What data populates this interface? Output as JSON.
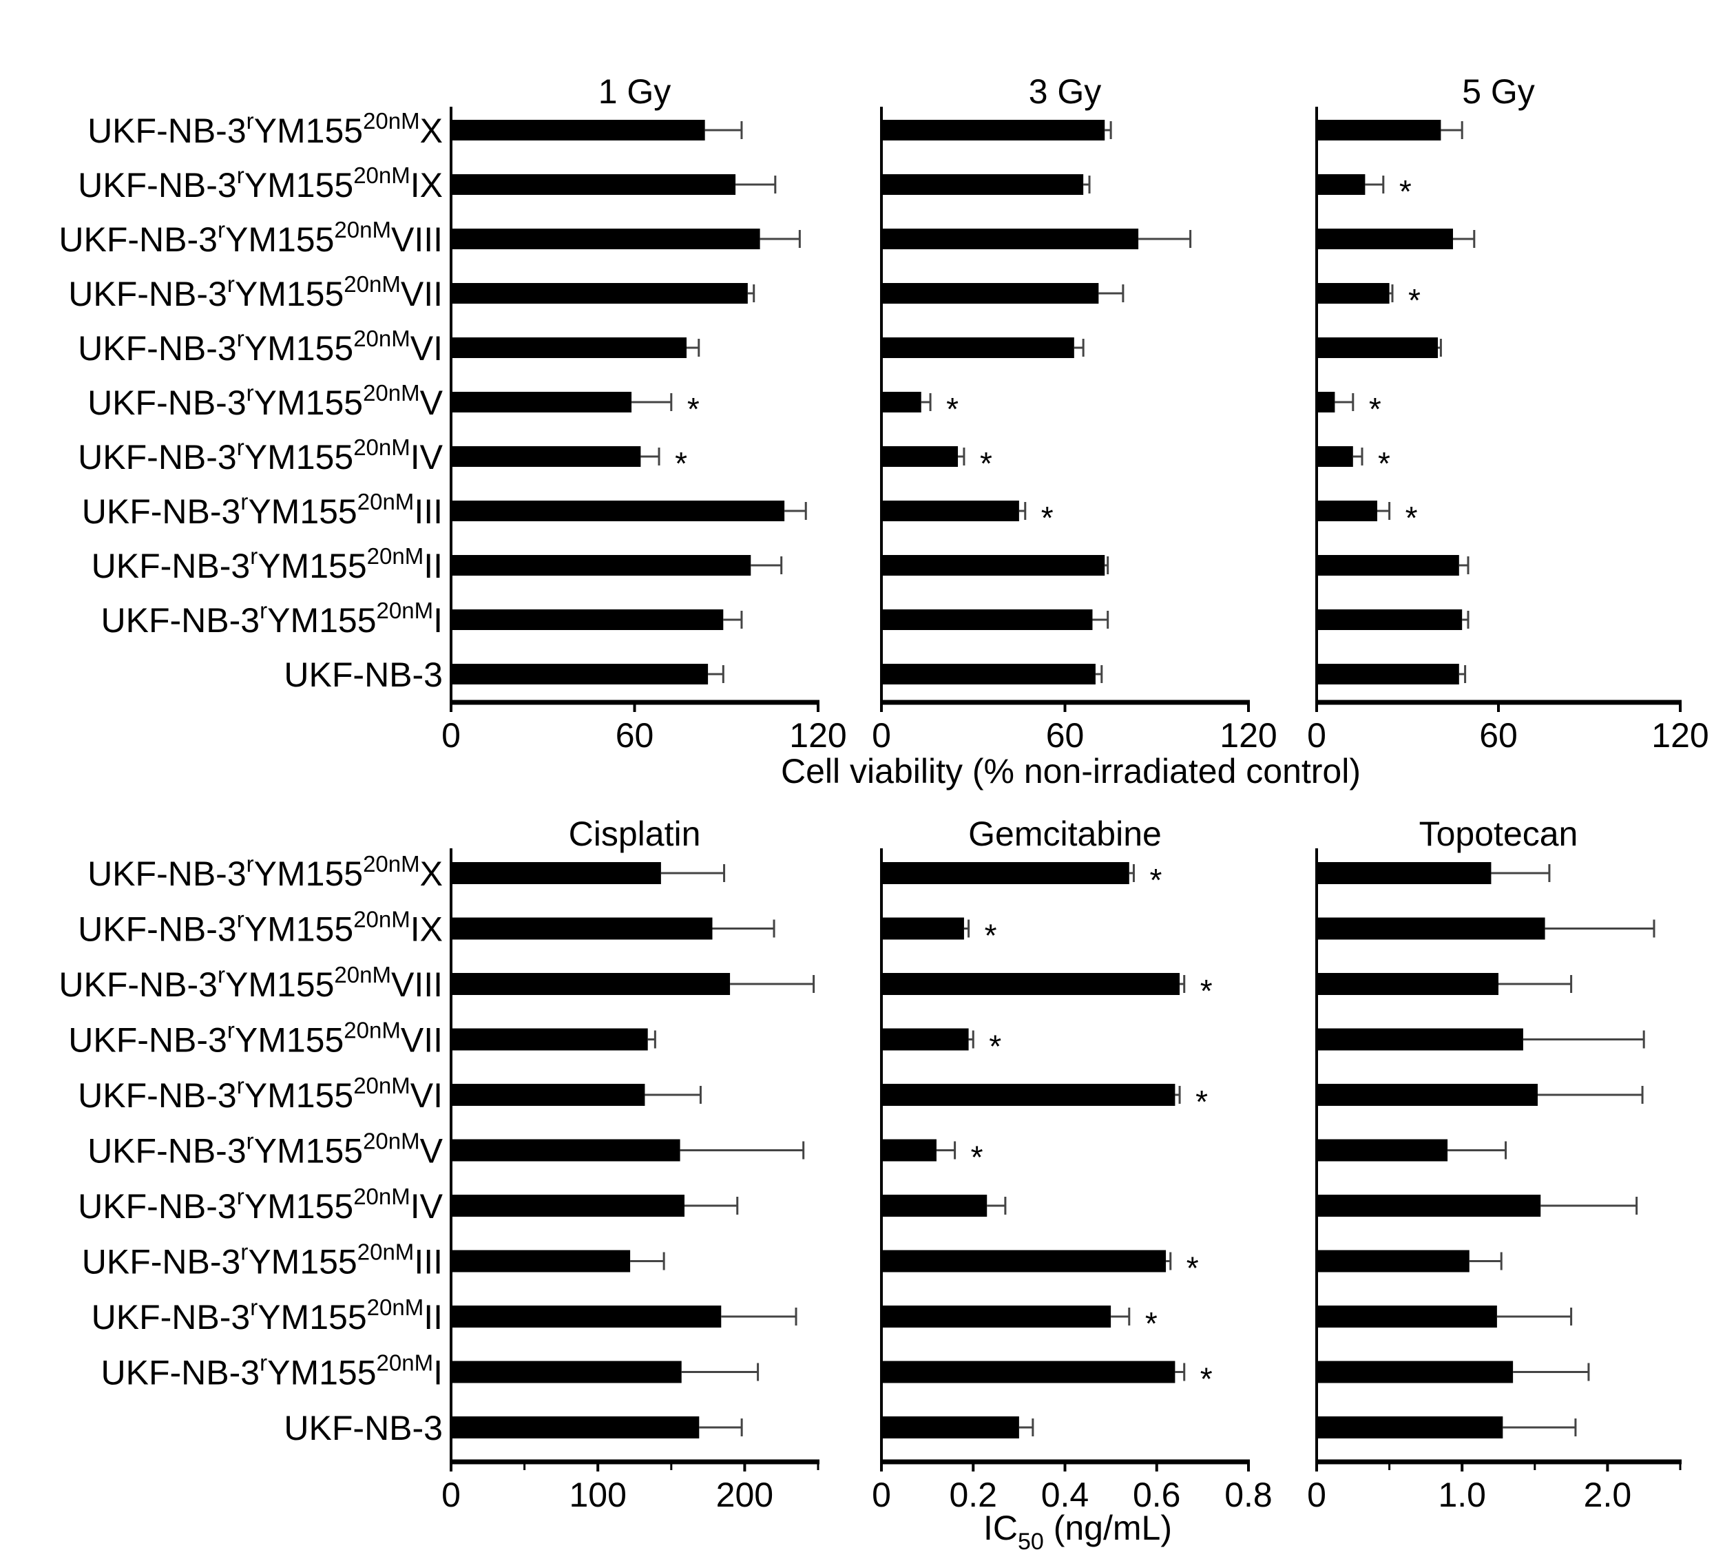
{
  "categories": [
    {
      "base": "UKF-NB-3",
      "sup": "r",
      "mid": "YM155",
      "sup2": "20nM",
      "suffix": "X"
    },
    {
      "base": "UKF-NB-3",
      "sup": "r",
      "mid": "YM155",
      "sup2": "20nM",
      "suffix": "IX"
    },
    {
      "base": "UKF-NB-3",
      "sup": "r",
      "mid": "YM155",
      "sup2": "20nM",
      "suffix": "VIII"
    },
    {
      "base": "UKF-NB-3",
      "sup": "r",
      "mid": "YM155",
      "sup2": "20nM",
      "suffix": "VII"
    },
    {
      "base": "UKF-NB-3",
      "sup": "r",
      "mid": "YM155",
      "sup2": "20nM",
      "suffix": "VI"
    },
    {
      "base": "UKF-NB-3",
      "sup": "r",
      "mid": "YM155",
      "sup2": "20nM",
      "suffix": "V"
    },
    {
      "base": "UKF-NB-3",
      "sup": "r",
      "mid": "YM155",
      "sup2": "20nM",
      "suffix": "IV"
    },
    {
      "base": "UKF-NB-3",
      "sup": "r",
      "mid": "YM155",
      "sup2": "20nM",
      "suffix": "III"
    },
    {
      "base": "UKF-NB-3",
      "sup": "r",
      "mid": "YM155",
      "sup2": "20nM",
      "suffix": "II"
    },
    {
      "base": "UKF-NB-3",
      "sup": "r",
      "mid": "YM155",
      "sup2": "20nM",
      "suffix": "I"
    },
    {
      "base": "UKF-NB-3",
      "sup": "",
      "mid": "",
      "sup2": "",
      "suffix": ""
    }
  ],
  "star_symbol": "*",
  "shared_xlabels": {
    "top": "Cell viability (% non-irradiated control)",
    "bottom_main": "IC",
    "bottom_sub": "50",
    "bottom_tail": " (ng/mL)"
  },
  "chart_data": [
    {
      "type": "bar",
      "orientation": "horizontal",
      "title": "1 Gy",
      "xlim": [
        0,
        120
      ],
      "xticks": [
        0,
        60,
        120
      ],
      "xtick_labels": [
        "0",
        "60",
        "120"
      ],
      "values": [
        83,
        93,
        101,
        97,
        77,
        59,
        62,
        109,
        98,
        89,
        84
      ],
      "errors": [
        12,
        13,
        13,
        2,
        4,
        13,
        6,
        7,
        10,
        6,
        5
      ],
      "significant": [
        false,
        false,
        false,
        false,
        false,
        true,
        true,
        false,
        false,
        false,
        false
      ]
    },
    {
      "type": "bar",
      "orientation": "horizontal",
      "title": "3 Gy",
      "xlim": [
        0,
        120
      ],
      "xticks": [
        0,
        60,
        120
      ],
      "xtick_labels": [
        "0",
        "60",
        "120"
      ],
      "values": [
        73,
        66,
        84,
        71,
        63,
        13,
        25,
        45,
        73,
        69,
        70
      ],
      "errors": [
        2,
        2,
        17,
        8,
        3,
        3,
        2,
        2,
        1,
        5,
        2
      ],
      "significant": [
        false,
        false,
        false,
        false,
        false,
        true,
        true,
        true,
        false,
        false,
        false
      ]
    },
    {
      "type": "bar",
      "orientation": "horizontal",
      "title": "5 Gy",
      "xlim": [
        0,
        120
      ],
      "xticks": [
        0,
        60,
        120
      ],
      "xtick_labels": [
        "0",
        "60",
        "120"
      ],
      "values": [
        41,
        16,
        45,
        24,
        40,
        6,
        12,
        20,
        47,
        48,
        47
      ],
      "errors": [
        7,
        6,
        7,
        1,
        1,
        6,
        3,
        4,
        3,
        2,
        2
      ],
      "significant": [
        false,
        true,
        false,
        true,
        false,
        true,
        true,
        true,
        false,
        false,
        false
      ]
    },
    {
      "type": "bar",
      "orientation": "horizontal",
      "title": "Cisplatin",
      "xlim": [
        0,
        250
      ],
      "xticks": [
        0,
        100,
        200
      ],
      "xtick_labels": [
        "0",
        "100",
        "200"
      ],
      "minor_ticks": [
        50,
        150,
        250
      ],
      "values": [
        143,
        178,
        190,
        134,
        132,
        156,
        159,
        122,
        184,
        157,
        169
      ],
      "errors": [
        43,
        42,
        57,
        5,
        38,
        84,
        36,
        23,
        51,
        52,
        29
      ],
      "significant": [
        false,
        false,
        false,
        false,
        false,
        false,
        false,
        false,
        false,
        false,
        false
      ]
    },
    {
      "type": "bar",
      "orientation": "horizontal",
      "title": "Gemcitabine",
      "xlim": [
        0,
        0.8
      ],
      "xticks": [
        0,
        0.2,
        0.4,
        0.6,
        0.8
      ],
      "xtick_labels": [
        "0",
        "0.2",
        "0.4",
        "0.6",
        "0.8"
      ],
      "values": [
        0.54,
        0.18,
        0.65,
        0.19,
        0.64,
        0.12,
        0.23,
        0.62,
        0.5,
        0.64,
        0.3
      ],
      "errors": [
        0.01,
        0.01,
        0.01,
        0.01,
        0.01,
        0.04,
        0.04,
        0.01,
        0.04,
        0.02,
        0.03
      ],
      "significant": [
        true,
        true,
        true,
        true,
        true,
        true,
        false,
        true,
        true,
        true,
        false
      ]
    },
    {
      "type": "bar",
      "orientation": "horizontal",
      "title": "Topotecan",
      "xlim": [
        0,
        2.5
      ],
      "xticks": [
        0,
        1.0,
        2.0
      ],
      "xtick_labels": [
        "0",
        "1.0",
        "2.0"
      ],
      "minor_ticks": [
        0.5,
        1.5,
        2.5
      ],
      "values": [
        1.2,
        1.57,
        1.25,
        1.42,
        1.52,
        0.9,
        1.54,
        1.05,
        1.24,
        1.35,
        1.28
      ],
      "errors": [
        0.4,
        0.75,
        0.5,
        0.83,
        0.72,
        0.4,
        0.66,
        0.22,
        0.51,
        0.52,
        0.5
      ],
      "significant": [
        false,
        false,
        false,
        false,
        false,
        false,
        false,
        false,
        false,
        false,
        false
      ]
    }
  ]
}
